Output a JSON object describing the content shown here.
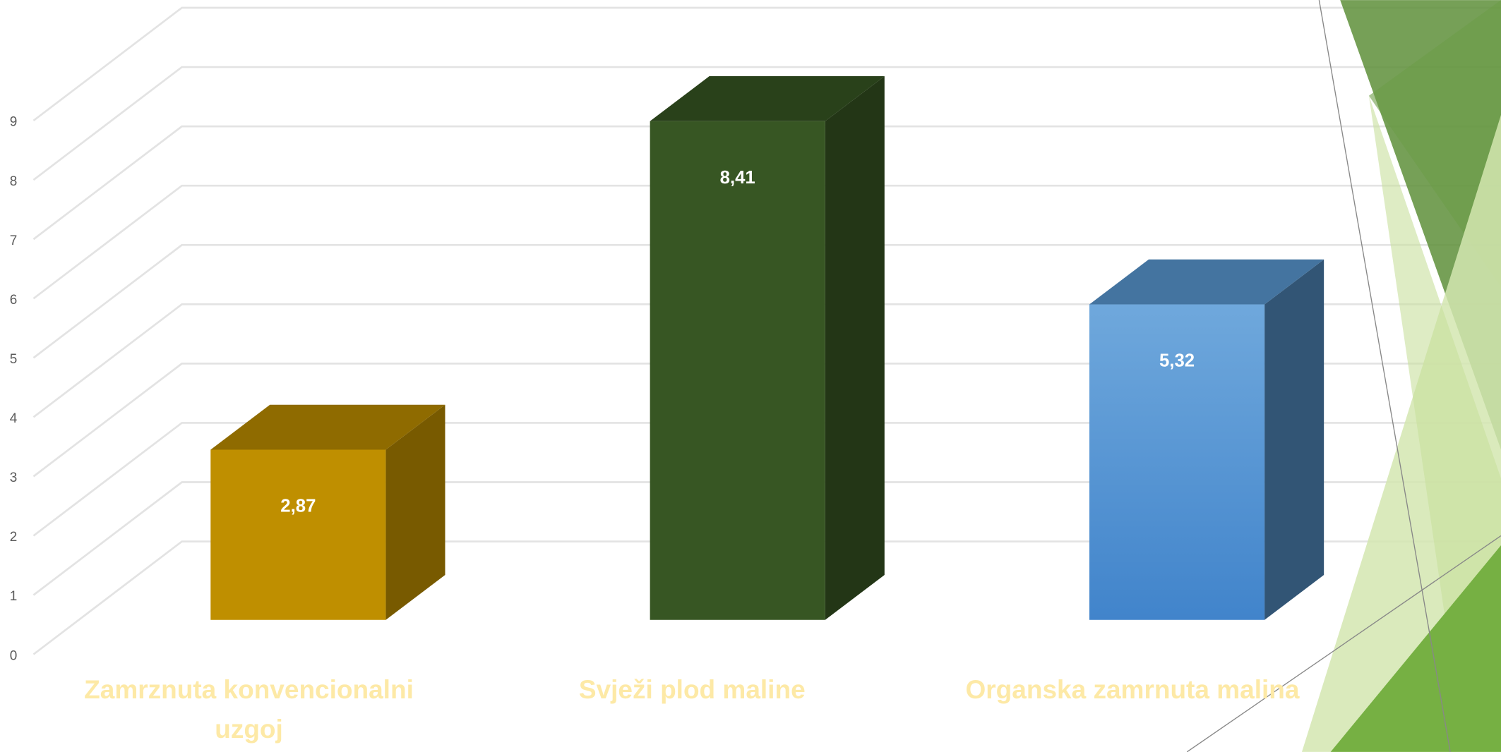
{
  "chart_data": {
    "type": "bar3d",
    "categories": [
      "Zamrznuta konvencionalni uzgoj",
      "Svježi plod maline",
      "Organska zamrnuta malina"
    ],
    "values": [
      2.87,
      8.41,
      5.32
    ],
    "value_labels": [
      "2,87",
      "8,41",
      "5,32"
    ],
    "colors": [
      "#bf8f00",
      "#375623",
      "#5b9bd5"
    ],
    "ylim": [
      0,
      9
    ],
    "yticks": [
      0,
      1,
      2,
      3,
      4,
      5,
      6,
      7,
      8,
      9
    ],
    "grid": true
  }
}
